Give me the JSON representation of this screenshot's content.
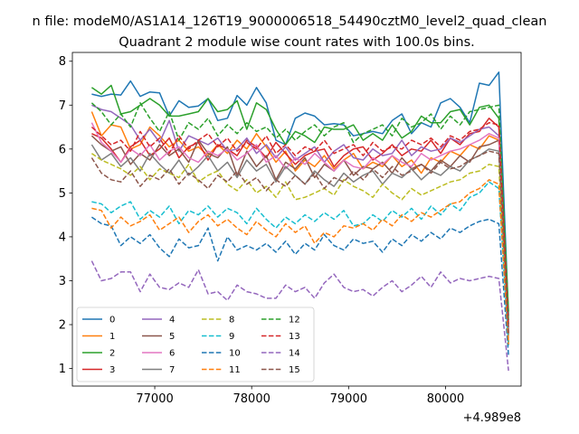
{
  "chart_data": {
    "type": "line",
    "suptitle": "n file: modeM0/AS1A14_126T19_9000006518_54490cztM0_level2_quad_clean",
    "title": "Quadrant 2 module wise count rates with 100.0s bins.",
    "xlabel": "",
    "ylabel": "",
    "x_offset_label": "+4.989e8",
    "xlim": [
      76150,
      80780
    ],
    "ylim": [
      0.6,
      8.2
    ],
    "xticks": [
      77000,
      78000,
      79000,
      80000
    ],
    "yticks": [
      1,
      2,
      3,
      4,
      5,
      6,
      7,
      8
    ],
    "x": [
      76350,
      76450,
      76550,
      76650,
      76750,
      76850,
      76950,
      77050,
      77150,
      77250,
      77350,
      77450,
      77550,
      77650,
      77750,
      77850,
      77950,
      78050,
      78150,
      78250,
      78350,
      78450,
      78550,
      78650,
      78750,
      78850,
      78950,
      79050,
      79150,
      79250,
      79350,
      79450,
      79550,
      79650,
      79750,
      79850,
      79950,
      80050,
      80150,
      80250,
      80350,
      80450,
      80550,
      80650
    ],
    "legend": {
      "location": "lower-left",
      "columns": 4
    },
    "grid": false,
    "series": [
      {
        "name": "0",
        "color": "#1f77b4",
        "style": "solid",
        "values": [
          7.25,
          7.2,
          7.25,
          7.23,
          7.55,
          7.2,
          7.3,
          7.28,
          6.75,
          7.1,
          6.95,
          6.98,
          7.15,
          6.65,
          6.7,
          7.22,
          7.0,
          7.4,
          7.05,
          6.2,
          6.1,
          6.7,
          6.82,
          6.75,
          6.55,
          6.58,
          6.55,
          6.3,
          6.35,
          6.4,
          6.35,
          6.65,
          6.8,
          6.35,
          6.6,
          6.5,
          7.05,
          7.15,
          6.95,
          6.6,
          7.5,
          7.45,
          7.75,
          2.2
        ]
      },
      {
        "name": "1",
        "color": "#ff7f0e",
        "style": "solid",
        "values": [
          6.85,
          6.3,
          6.55,
          6.5,
          6.0,
          6.1,
          6.5,
          6.3,
          6.05,
          6.2,
          5.95,
          6.05,
          5.85,
          6.1,
          5.9,
          6.2,
          6.0,
          6.35,
          6.05,
          5.7,
          5.95,
          5.5,
          5.75,
          5.6,
          5.85,
          5.55,
          5.75,
          5.9,
          5.55,
          5.7,
          5.6,
          5.85,
          5.6,
          5.75,
          5.45,
          5.8,
          5.7,
          5.95,
          5.85,
          6.1,
          6.0,
          6.3,
          6.2,
          1.6
        ]
      },
      {
        "name": "2",
        "color": "#2ca02c",
        "style": "solid",
        "values": [
          7.4,
          7.25,
          7.45,
          6.8,
          6.85,
          7.0,
          7.15,
          7.0,
          6.75,
          6.75,
          6.8,
          6.85,
          7.15,
          6.85,
          6.9,
          7.1,
          6.45,
          7.05,
          6.9,
          6.45,
          6.1,
          6.4,
          6.3,
          6.15,
          6.5,
          6.45,
          6.45,
          6.55,
          6.2,
          6.35,
          6.2,
          6.55,
          6.25,
          6.4,
          6.75,
          6.6,
          6.6,
          6.85,
          6.9,
          6.55,
          6.95,
          7.0,
          6.7,
          2.3
        ]
      },
      {
        "name": "3",
        "color": "#d62728",
        "style": "solid",
        "values": [
          6.35,
          6.25,
          6.0,
          5.7,
          6.05,
          6.2,
          5.85,
          6.0,
          6.25,
          5.8,
          6.05,
          6.15,
          5.75,
          6.1,
          6.0,
          5.85,
          6.2,
          6.05,
          5.8,
          6.15,
          5.9,
          5.65,
          5.85,
          5.95,
          6.0,
          5.6,
          5.85,
          6.0,
          6.05,
          5.75,
          5.9,
          6.1,
          5.85,
          6.0,
          5.95,
          6.2,
          5.9,
          6.25,
          6.1,
          6.35,
          6.4,
          6.7,
          6.5,
          1.8
        ]
      },
      {
        "name": "4",
        "color": "#9467bd",
        "style": "solid",
        "values": [
          7.0,
          6.9,
          6.85,
          6.7,
          6.55,
          6.2,
          6.45,
          6.15,
          6.65,
          5.95,
          6.3,
          6.2,
          6.1,
          6.25,
          5.95,
          6.0,
          6.25,
          5.9,
          6.1,
          5.8,
          6.05,
          5.75,
          5.9,
          6.05,
          5.7,
          5.95,
          6.1,
          5.8,
          5.75,
          6.0,
          5.85,
          5.9,
          6.2,
          5.85,
          6.05,
          5.95,
          6.0,
          6.25,
          6.15,
          6.3,
          6.45,
          6.5,
          6.3,
          1.9
        ]
      },
      {
        "name": "5",
        "color": "#8c564b",
        "style": "solid",
        "values": [
          6.3,
          6.1,
          5.95,
          6.05,
          5.65,
          5.9,
          5.75,
          6.1,
          5.85,
          6.0,
          5.7,
          6.2,
          5.9,
          5.8,
          6.05,
          5.4,
          5.95,
          5.6,
          5.85,
          5.3,
          5.7,
          5.55,
          5.8,
          5.35,
          5.65,
          5.5,
          5.75,
          5.4,
          5.6,
          5.55,
          5.7,
          5.45,
          5.8,
          5.55,
          5.65,
          5.5,
          5.75,
          5.6,
          5.85,
          5.7,
          6.05,
          6.1,
          6.2,
          2.0
        ]
      },
      {
        "name": "6",
        "color": "#e377c2",
        "style": "solid",
        "values": [
          6.6,
          6.15,
          5.95,
          5.7,
          6.0,
          5.85,
          6.1,
          5.75,
          5.95,
          6.05,
          5.8,
          5.7,
          5.95,
          5.85,
          6.0,
          5.75,
          5.9,
          6.1,
          5.7,
          5.85,
          5.55,
          5.8,
          5.65,
          5.9,
          5.7,
          5.5,
          5.75,
          5.6,
          5.55,
          5.8,
          5.65,
          5.85,
          5.7,
          5.6,
          5.9,
          5.75,
          5.85,
          5.95,
          6.0,
          6.1,
          6.2,
          6.35,
          6.25,
          1.7
        ]
      },
      {
        "name": "7",
        "color": "#7f7f7f",
        "style": "solid",
        "values": [
          6.1,
          5.75,
          5.9,
          5.6,
          5.8,
          5.5,
          5.9,
          5.65,
          5.45,
          5.75,
          5.4,
          5.6,
          5.85,
          5.5,
          5.7,
          5.35,
          5.75,
          5.5,
          5.65,
          5.25,
          5.6,
          5.4,
          5.2,
          5.5,
          5.3,
          5.15,
          5.45,
          5.25,
          5.4,
          5.5,
          5.2,
          5.45,
          5.35,
          5.55,
          5.3,
          5.5,
          5.4,
          5.6,
          5.5,
          5.75,
          5.85,
          6.0,
          5.95,
          1.75
        ]
      },
      {
        "name": "8",
        "color": "#bcbd22",
        "style": "dashed",
        "values": [
          5.9,
          5.75,
          5.65,
          5.55,
          5.4,
          5.6,
          5.3,
          5.55,
          5.45,
          5.35,
          5.65,
          5.25,
          5.4,
          5.5,
          5.2,
          5.05,
          5.3,
          5.0,
          5.15,
          4.9,
          5.25,
          4.85,
          4.9,
          5.0,
          5.1,
          4.95,
          5.3,
          5.15,
          5.05,
          4.9,
          5.2,
          5.0,
          4.85,
          5.1,
          4.95,
          5.05,
          5.15,
          5.25,
          5.3,
          5.45,
          5.5,
          5.65,
          5.6,
          1.6
        ]
      },
      {
        "name": "9",
        "color": "#17becf",
        "style": "dashed",
        "values": [
          4.8,
          4.75,
          4.55,
          4.7,
          4.8,
          4.4,
          4.6,
          4.45,
          4.7,
          4.3,
          4.6,
          4.5,
          4.7,
          4.45,
          4.65,
          4.55,
          4.3,
          4.65,
          4.4,
          4.2,
          4.45,
          4.3,
          4.5,
          4.35,
          4.55,
          4.4,
          4.6,
          4.25,
          4.3,
          4.5,
          4.35,
          4.6,
          4.45,
          4.65,
          4.4,
          4.7,
          4.5,
          4.75,
          4.6,
          4.9,
          5.0,
          5.25,
          5.1,
          1.5
        ]
      },
      {
        "name": "10",
        "color": "#1f77b4",
        "style": "dashed",
        "values": [
          4.45,
          4.3,
          4.25,
          3.8,
          4.0,
          3.85,
          4.05,
          3.75,
          3.55,
          3.95,
          3.75,
          3.8,
          4.2,
          3.45,
          4.0,
          3.7,
          3.8,
          3.7,
          3.85,
          3.65,
          3.9,
          3.6,
          3.85,
          3.7,
          4.05,
          3.8,
          3.7,
          3.95,
          3.85,
          3.9,
          3.65,
          3.95,
          3.8,
          4.05,
          3.9,
          4.1,
          3.95,
          4.2,
          4.1,
          4.25,
          4.35,
          4.4,
          4.3,
          1.3
        ]
      },
      {
        "name": "11",
        "color": "#ff7f0e",
        "style": "dashed",
        "values": [
          4.65,
          4.6,
          4.2,
          4.45,
          4.25,
          4.35,
          4.5,
          4.15,
          4.3,
          4.45,
          4.1,
          4.35,
          4.5,
          4.25,
          4.4,
          4.2,
          4.05,
          4.35,
          4.15,
          4.0,
          4.3,
          4.1,
          4.25,
          3.85,
          4.1,
          4.0,
          4.25,
          4.2,
          4.3,
          4.15,
          4.4,
          4.25,
          4.5,
          4.35,
          4.55,
          4.45,
          4.6,
          4.75,
          4.8,
          5.0,
          5.1,
          5.3,
          5.2,
          1.55
        ]
      },
      {
        "name": "12",
        "color": "#2ca02c",
        "style": "dashed",
        "values": [
          7.05,
          6.85,
          6.55,
          6.8,
          6.5,
          7.05,
          6.7,
          6.4,
          6.85,
          6.2,
          6.6,
          6.45,
          6.7,
          6.3,
          6.55,
          6.35,
          6.6,
          6.4,
          6.5,
          6.25,
          6.45,
          6.2,
          6.4,
          6.55,
          6.3,
          6.5,
          6.6,
          6.15,
          6.35,
          6.45,
          6.55,
          6.3,
          6.7,
          6.5,
          6.6,
          6.8,
          6.45,
          6.75,
          6.55,
          6.85,
          6.9,
          6.95,
          7.0,
          2.1
        ]
      },
      {
        "name": "13",
        "color": "#d62728",
        "style": "dashed",
        "values": [
          6.5,
          6.3,
          6.1,
          6.2,
          5.95,
          6.4,
          6.05,
          6.25,
          5.9,
          6.3,
          6.0,
          6.2,
          6.35,
          6.05,
          6.25,
          5.95,
          6.15,
          6.0,
          6.3,
          5.9,
          6.1,
          5.85,
          6.05,
          5.95,
          6.2,
          5.9,
          6.0,
          6.1,
          5.85,
          6.15,
          5.95,
          6.05,
          6.0,
          6.2,
          6.1,
          6.25,
          6.05,
          6.3,
          6.2,
          6.4,
          6.45,
          6.6,
          6.55,
          1.95
        ]
      },
      {
        "name": "14",
        "color": "#9467bd",
        "style": "dashed",
        "values": [
          3.45,
          3.0,
          3.05,
          3.2,
          3.2,
          2.75,
          3.15,
          2.85,
          2.8,
          2.95,
          2.85,
          3.25,
          2.7,
          2.75,
          2.55,
          2.9,
          2.75,
          2.7,
          2.6,
          2.6,
          2.9,
          2.75,
          2.85,
          2.6,
          2.95,
          3.15,
          2.85,
          2.75,
          2.8,
          2.65,
          2.85,
          3.0,
          2.75,
          2.9,
          3.1,
          2.85,
          3.2,
          2.95,
          3.05,
          3.0,
          3.05,
          3.1,
          3.05,
          0.95
        ]
      },
      {
        "name": "15",
        "color": "#8c564b",
        "style": "dashed",
        "values": [
          5.8,
          5.45,
          5.3,
          5.25,
          5.5,
          5.15,
          5.4,
          5.3,
          5.55,
          5.2,
          5.45,
          5.3,
          5.1,
          5.4,
          5.25,
          5.5,
          5.2,
          5.35,
          5.05,
          5.3,
          5.15,
          5.4,
          5.2,
          5.45,
          5.1,
          5.35,
          5.25,
          5.5,
          5.3,
          5.55,
          5.35,
          5.6,
          5.4,
          5.5,
          5.65,
          5.45,
          5.7,
          5.55,
          5.6,
          5.75,
          5.85,
          5.95,
          5.9,
          1.8
        ]
      }
    ]
  }
}
